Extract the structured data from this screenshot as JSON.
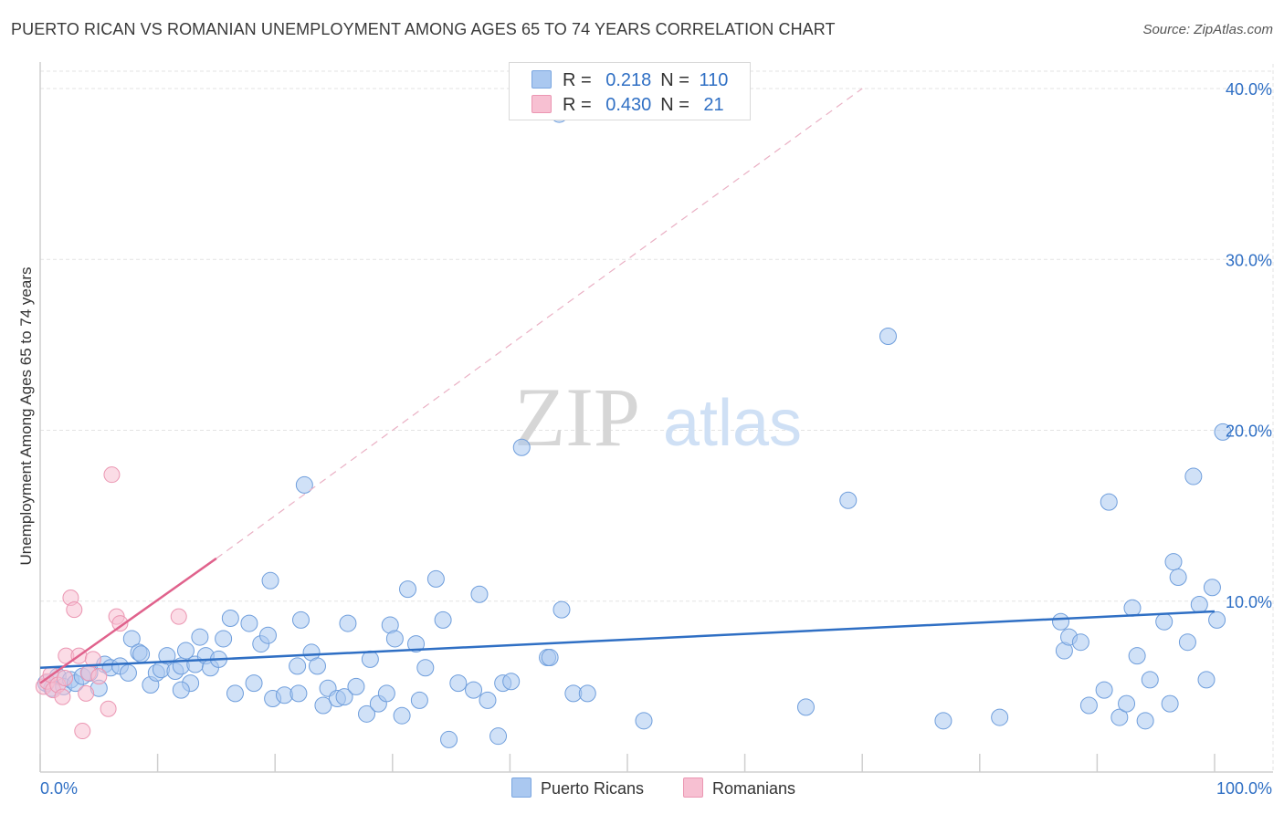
{
  "header": {
    "title": "PUERTO RICAN VS ROMANIAN UNEMPLOYMENT AMONG AGES 65 TO 74 YEARS CORRELATION CHART",
    "source": "Source: ZipAtlas.com"
  },
  "watermark": {
    "zip": "ZIP",
    "atlas": "atlas"
  },
  "legend": {
    "rows": [
      {
        "r_label": "R =",
        "r_value": "0.218",
        "n_label": "N =",
        "n_value": "110",
        "color": "#aac8f0",
        "stroke": "#7aa6e0"
      },
      {
        "r_label": "R =",
        "r_value": "0.430",
        "n_label": "N =",
        "n_value": "21",
        "color": "#f7c0d2",
        "stroke": "#eb96b2"
      }
    ]
  },
  "bottom_legend": [
    {
      "label": "Puerto Ricans",
      "color": "#aac8f0"
    },
    {
      "label": "Romanians",
      "color": "#f7c0d2"
    }
  ],
  "chart_data": {
    "type": "scatter",
    "title": "PUERTO RICAN VS ROMANIAN UNEMPLOYMENT AMONG AGES 65 TO 74 YEARS CORRELATION CHART",
    "xlabel": "",
    "ylabel": "Unemployment Among Ages 65 to 74 years",
    "xlim": [
      0,
      100
    ],
    "ylim": [
      0,
      42
    ],
    "x_tick_labels": [
      "0.0%",
      "100.0%"
    ],
    "y_ticks": [
      10,
      20,
      30,
      40
    ],
    "y_tick_labels": [
      "10.0%",
      "20.0%",
      "30.0%",
      "40.0%"
    ],
    "grid": true,
    "series": [
      {
        "name": "Puerto Ricans",
        "color": "#aac8f0",
        "stroke": "#6f9edc",
        "trend": {
          "x": [
            0,
            100
          ],
          "y": [
            6.1,
            9.4
          ],
          "color": "#2f6fc4"
        },
        "points": [
          [
            0.5,
            5.2
          ],
          [
            1.0,
            4.9
          ],
          [
            1.5,
            5.6
          ],
          [
            2.0,
            5.0
          ],
          [
            2.6,
            5.4
          ],
          [
            3.0,
            5.2
          ],
          [
            3.6,
            5.6
          ],
          [
            4.2,
            5.8
          ],
          [
            5.0,
            4.9
          ],
          [
            5.5,
            6.3
          ],
          [
            6.0,
            6.1
          ],
          [
            6.8,
            6.2
          ],
          [
            7.5,
            5.8
          ],
          [
            7.8,
            7.8
          ],
          [
            8.4,
            7.0
          ],
          [
            8.6,
            6.9
          ],
          [
            9.4,
            5.1
          ],
          [
            9.9,
            5.8
          ],
          [
            10.3,
            6.0
          ],
          [
            10.8,
            6.8
          ],
          [
            11.5,
            5.9
          ],
          [
            12.0,
            6.2
          ],
          [
            12.4,
            7.1
          ],
          [
            12.8,
            5.2
          ],
          [
            13.2,
            6.3
          ],
          [
            13.6,
            7.9
          ],
          [
            14.1,
            6.8
          ],
          [
            14.5,
            6.1
          ],
          [
            15.2,
            6.6
          ],
          [
            15.6,
            7.8
          ],
          [
            16.2,
            9.0
          ],
          [
            16.6,
            4.6
          ],
          [
            17.8,
            8.7
          ],
          [
            18.2,
            5.2
          ],
          [
            18.8,
            7.5
          ],
          [
            19.4,
            8.0
          ],
          [
            19.6,
            11.2
          ],
          [
            19.8,
            4.3
          ],
          [
            20.8,
            4.5
          ],
          [
            21.9,
            6.2
          ],
          [
            22.2,
            8.9
          ],
          [
            22.5,
            16.8
          ],
          [
            23.1,
            7.0
          ],
          [
            23.6,
            6.2
          ],
          [
            24.1,
            3.9
          ],
          [
            24.5,
            4.9
          ],
          [
            25.3,
            4.3
          ],
          [
            25.9,
            4.4
          ],
          [
            26.2,
            8.7
          ],
          [
            26.9,
            5.0
          ],
          [
            27.8,
            3.4
          ],
          [
            28.1,
            6.6
          ],
          [
            28.8,
            4.0
          ],
          [
            29.5,
            4.6
          ],
          [
            29.8,
            8.6
          ],
          [
            30.2,
            7.8
          ],
          [
            30.8,
            3.3
          ],
          [
            31.3,
            10.7
          ],
          [
            32.0,
            7.5
          ],
          [
            32.3,
            4.2
          ],
          [
            32.8,
            6.1
          ],
          [
            33.7,
            11.3
          ],
          [
            34.3,
            8.9
          ],
          [
            34.8,
            1.9
          ],
          [
            35.6,
            5.2
          ],
          [
            36.9,
            4.8
          ],
          [
            37.4,
            10.4
          ],
          [
            38.1,
            4.2
          ],
          [
            39.0,
            2.1
          ],
          [
            39.4,
            5.2
          ],
          [
            40.1,
            5.3
          ],
          [
            41.0,
            19.0
          ],
          [
            43.2,
            6.7
          ],
          [
            43.4,
            6.7
          ],
          [
            44.4,
            9.5
          ],
          [
            45.4,
            4.6
          ],
          [
            46.6,
            4.6
          ],
          [
            51.4,
            3.0
          ],
          [
            65.2,
            3.8
          ],
          [
            68.8,
            15.9
          ],
          [
            72.2,
            25.5
          ],
          [
            76.9,
            3.0
          ],
          [
            81.7,
            3.2
          ],
          [
            86.9,
            8.8
          ],
          [
            87.2,
            7.1
          ],
          [
            87.6,
            7.9
          ],
          [
            88.6,
            7.6
          ],
          [
            89.3,
            3.9
          ],
          [
            90.6,
            4.8
          ],
          [
            91.0,
            15.8
          ],
          [
            91.9,
            3.2
          ],
          [
            92.5,
            4.0
          ],
          [
            93.0,
            9.6
          ],
          [
            93.4,
            6.8
          ],
          [
            94.1,
            3.0
          ],
          [
            94.5,
            5.4
          ],
          [
            95.7,
            8.8
          ],
          [
            96.2,
            4.0
          ],
          [
            96.5,
            12.3
          ],
          [
            96.9,
            11.4
          ],
          [
            97.7,
            7.6
          ],
          [
            98.2,
            17.3
          ],
          [
            98.7,
            9.8
          ],
          [
            99.3,
            5.4
          ],
          [
            99.8,
            10.8
          ],
          [
            100.2,
            8.9
          ],
          [
            100.7,
            19.9
          ],
          [
            44.2,
            38.5
          ],
          [
            22.0,
            4.6
          ],
          [
            12.0,
            4.8
          ]
        ]
      },
      {
        "name": "Romanians",
        "color": "#f7c0d2",
        "stroke": "#eb96b2",
        "trend": {
          "x": [
            0,
            15
          ],
          "y": [
            5.2,
            12.5
          ],
          "dashed_to": [
            70,
            40
          ],
          "color": "#e0628c"
        },
        "points": [
          [
            0.3,
            5.0
          ],
          [
            0.6,
            5.3
          ],
          [
            0.9,
            5.7
          ],
          [
            1.1,
            4.8
          ],
          [
            1.5,
            5.1
          ],
          [
            1.9,
            4.4
          ],
          [
            2.1,
            5.5
          ],
          [
            2.2,
            6.8
          ],
          [
            2.6,
            10.2
          ],
          [
            2.9,
            9.5
          ],
          [
            3.3,
            6.8
          ],
          [
            3.6,
            2.4
          ],
          [
            3.9,
            4.6
          ],
          [
            4.1,
            5.8
          ],
          [
            4.5,
            6.6
          ],
          [
            5.0,
            5.6
          ],
          [
            5.8,
            3.7
          ],
          [
            6.1,
            17.4
          ],
          [
            6.5,
            9.1
          ],
          [
            6.8,
            8.7
          ],
          [
            11.8,
            9.1
          ]
        ]
      }
    ]
  }
}
